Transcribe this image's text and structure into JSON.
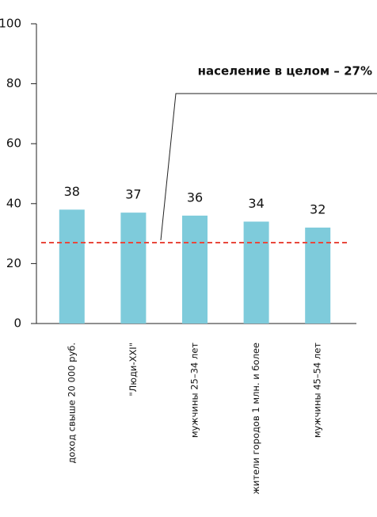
{
  "chart_data": {
    "type": "bar",
    "categories": [
      "доход свыше 20 000 руб.",
      "\"Люди-XXI\"",
      "мужчины 25–34 лет",
      "жители городов 1 млн. и более",
      "мужчины 45–54 лет"
    ],
    "values": [
      38,
      37,
      36,
      34,
      32
    ],
    "color": "#7ecbdb",
    "ylim": [
      0,
      100
    ],
    "yticks": [
      0,
      20,
      40,
      60,
      80,
      100
    ],
    "reference_line": {
      "value": 27,
      "label": "население в целом – 27%",
      "color": "#e8483c"
    }
  }
}
